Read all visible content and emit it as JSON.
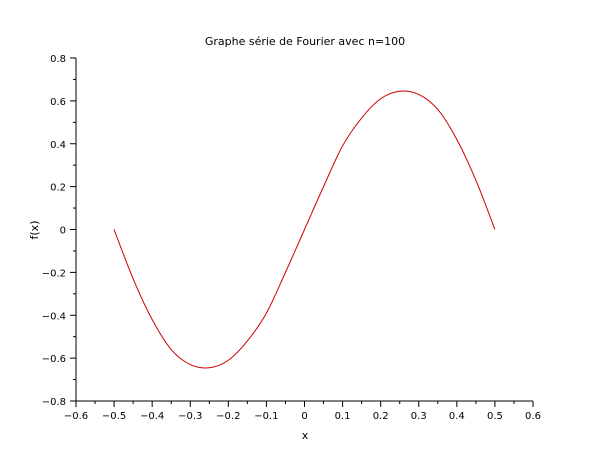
{
  "chart_data": {
    "type": "line",
    "title": "Graphe série de Fourier avec n=100",
    "xlabel": "x",
    "ylabel": "f(x)",
    "xlim": [
      -0.6,
      0.6
    ],
    "ylim": [
      -0.8,
      0.8
    ],
    "x_ticks": [
      "−0.6",
      "−0.5",
      "−0.4",
      "−0.3",
      "−0.2",
      "−0.1",
      "0",
      "0.1",
      "0.2",
      "0.3",
      "0.4",
      "0.5",
      "0.6"
    ],
    "x_tick_values": [
      -0.6,
      -0.5,
      -0.4,
      -0.3,
      -0.2,
      -0.1,
      0,
      0.1,
      0.2,
      0.3,
      0.4,
      0.5,
      0.6
    ],
    "y_ticks": [
      "0.8",
      "0.6",
      "0.4",
      "0.2",
      "0",
      "−0.2",
      "−0.4",
      "−0.6",
      "−0.8"
    ],
    "y_tick_values": [
      0.8,
      0.6,
      0.4,
      0.2,
      0,
      -0.2,
      -0.4,
      -0.6,
      -0.8
    ],
    "grid": false,
    "legend": "none",
    "series": [
      {
        "color": "#cc0000",
        "x": [
          -0.5,
          -0.45,
          -0.4,
          -0.35,
          -0.3,
          -0.25,
          -0.2,
          -0.15,
          -0.1,
          -0.05,
          0,
          0.05,
          0.1,
          0.15,
          0.2,
          0.25,
          0.3,
          0.35,
          0.4,
          0.45,
          0.5
        ],
        "y": [
          0,
          -0.23,
          -0.42,
          -0.56,
          -0.63,
          -0.645,
          -0.61,
          -0.52,
          -0.39,
          -0.2,
          0,
          0.2,
          0.39,
          0.52,
          0.61,
          0.645,
          0.63,
          0.56,
          0.42,
          0.23,
          0
        ]
      }
    ]
  }
}
